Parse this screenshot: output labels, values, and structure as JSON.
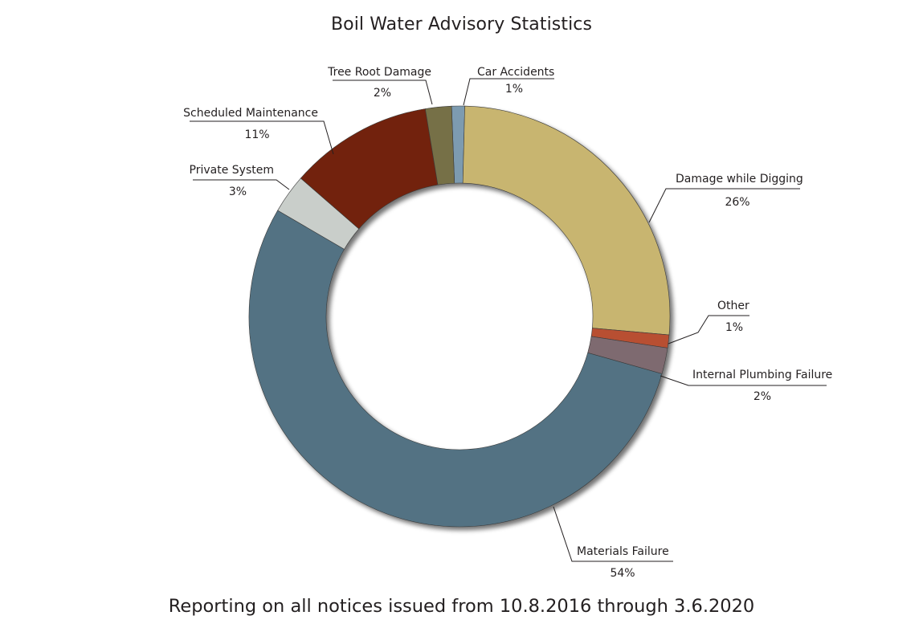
{
  "chart_data": {
    "type": "pie",
    "style": "donut",
    "title": "Boil Water Advisory Statistics",
    "subtitle": "Reporting on all notices issued from 10.8.2016 through 3.6.2020",
    "slices": [
      {
        "label": "Car Accidents",
        "value": 1,
        "display": "1%",
        "color": "#7d9bb0"
      },
      {
        "label": "Damage while Digging",
        "value": 26,
        "display": "26%",
        "color": "#c8b570"
      },
      {
        "label": "Other",
        "value": 1,
        "display": "1%",
        "color": "#b84f33"
      },
      {
        "label": "Internal Plumbing Failure",
        "value": 2,
        "display": "2%",
        "color": "#7e6b6f"
      },
      {
        "label": "Materials Failure",
        "value": 54,
        "display": "54%",
        "color": "#527283"
      },
      {
        "label": "Private System",
        "value": 3,
        "display": "3%",
        "color": "#c9ceca"
      },
      {
        "label": "Scheduled Maintenance",
        "value": 11,
        "display": "11%",
        "color": "#722307"
      },
      {
        "label": "Tree Root Damage",
        "value": 2,
        "display": "2%",
        "color": "#767046"
      }
    ],
    "legend": "none",
    "grid": false
  }
}
